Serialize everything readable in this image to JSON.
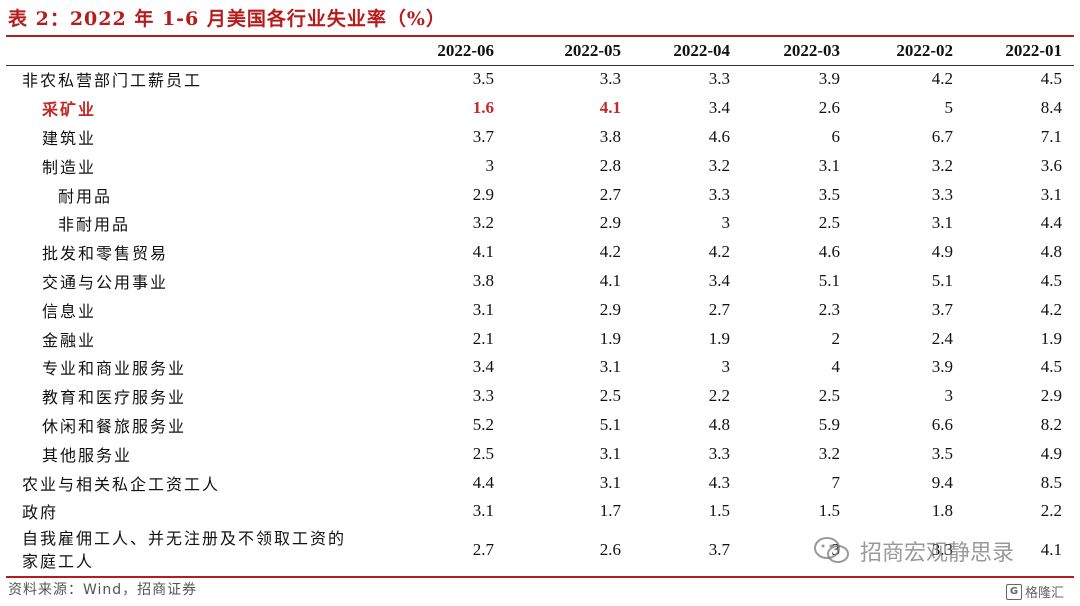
{
  "title": "表 2：2022 年 1-6 月美国各行业失业率（%）",
  "columns": [
    "",
    "2022-06",
    "2022-05",
    "2022-04",
    "2022-03",
    "2022-02",
    "2022-01"
  ],
  "rows": [
    {
      "label": "非农私营部门工薪员工",
      "indent": 1,
      "values": [
        "3.5",
        "3.3",
        "3.3",
        "3.9",
        "4.2",
        "4.5"
      ]
    },
    {
      "label": "采矿业",
      "indent": 2,
      "highlight": true,
      "values": [
        "1.6",
        "4.1",
        "3.4",
        "2.6",
        "5",
        "8.4"
      ]
    },
    {
      "label": "建筑业",
      "indent": 2,
      "values": [
        "3.7",
        "3.8",
        "4.6",
        "6",
        "6.7",
        "7.1"
      ]
    },
    {
      "label": "制造业",
      "indent": 2,
      "values": [
        "3",
        "2.8",
        "3.2",
        "3.1",
        "3.2",
        "3.6"
      ]
    },
    {
      "label": "耐用品",
      "indent": 3,
      "values": [
        "2.9",
        "2.7",
        "3.3",
        "3.5",
        "3.3",
        "3.1"
      ]
    },
    {
      "label": "非耐用品",
      "indent": 3,
      "values": [
        "3.2",
        "2.9",
        "3",
        "2.5",
        "3.1",
        "4.4"
      ]
    },
    {
      "label": "批发和零售贸易",
      "indent": 2,
      "values": [
        "4.1",
        "4.2",
        "4.2",
        "4.6",
        "4.9",
        "4.8"
      ]
    },
    {
      "label": "交通与公用事业",
      "indent": 2,
      "values": [
        "3.8",
        "4.1",
        "3.4",
        "5.1",
        "5.1",
        "4.5"
      ]
    },
    {
      "label": "信息业",
      "indent": 2,
      "values": [
        "3.1",
        "2.9",
        "2.7",
        "2.3",
        "3.7",
        "4.2"
      ]
    },
    {
      "label": "金融业",
      "indent": 2,
      "values": [
        "2.1",
        "1.9",
        "1.9",
        "2",
        "2.4",
        "1.9"
      ]
    },
    {
      "label": "专业和商业服务业",
      "indent": 2,
      "values": [
        "3.4",
        "3.1",
        "3",
        "4",
        "3.9",
        "4.5"
      ]
    },
    {
      "label": "教育和医疗服务业",
      "indent": 2,
      "values": [
        "3.3",
        "2.5",
        "2.2",
        "2.5",
        "3",
        "2.9"
      ]
    },
    {
      "label": "休闲和餐旅服务业",
      "indent": 2,
      "values": [
        "5.2",
        "5.1",
        "4.8",
        "5.9",
        "6.6",
        "8.2"
      ]
    },
    {
      "label": "其他服务业",
      "indent": 2,
      "values": [
        "2.5",
        "3.1",
        "3.3",
        "3.2",
        "3.5",
        "4.9"
      ]
    },
    {
      "label": "农业与相关私企工资工人",
      "indent": 0,
      "values": [
        "4.4",
        "3.1",
        "4.3",
        "7",
        "9.4",
        "8.5"
      ]
    },
    {
      "label": "政府",
      "indent": 0,
      "values": [
        "3.1",
        "1.7",
        "1.5",
        "1.5",
        "1.8",
        "2.2"
      ]
    },
    {
      "label": "自我雇佣工人、并无注册及不领取工资的家庭工人",
      "indent": 0,
      "tall": true,
      "values": [
        "2.7",
        "2.6",
        "3.7",
        "3",
        "3.3",
        "4.1"
      ]
    }
  ],
  "source": "资料来源：Wind，招商证券",
  "watermark": "招商宏观静思录",
  "watermark2": "格隆汇",
  "colors": {
    "accent": "#b71c1c",
    "highlight": "#c62828"
  }
}
